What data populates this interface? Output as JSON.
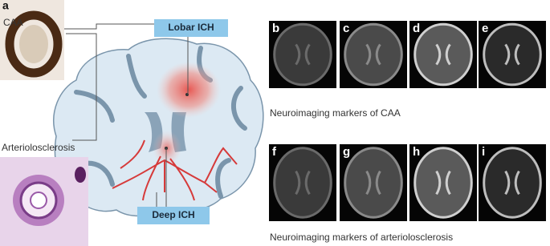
{
  "panel_a": {
    "label": "a",
    "histology": [
      "CAA",
      "Arteriolosclerosis"
    ],
    "callouts": [
      "Lobar ICH",
      "Deep ICH"
    ]
  },
  "rows": [
    {
      "panels": [
        "b",
        "c",
        "d",
        "e"
      ],
      "caption": "Neuroimaging markers of CAA"
    },
    {
      "panels": [
        "f",
        "g",
        "h",
        "i"
      ],
      "caption": "Neuroimaging markers of arteriolosclerosis"
    }
  ]
}
